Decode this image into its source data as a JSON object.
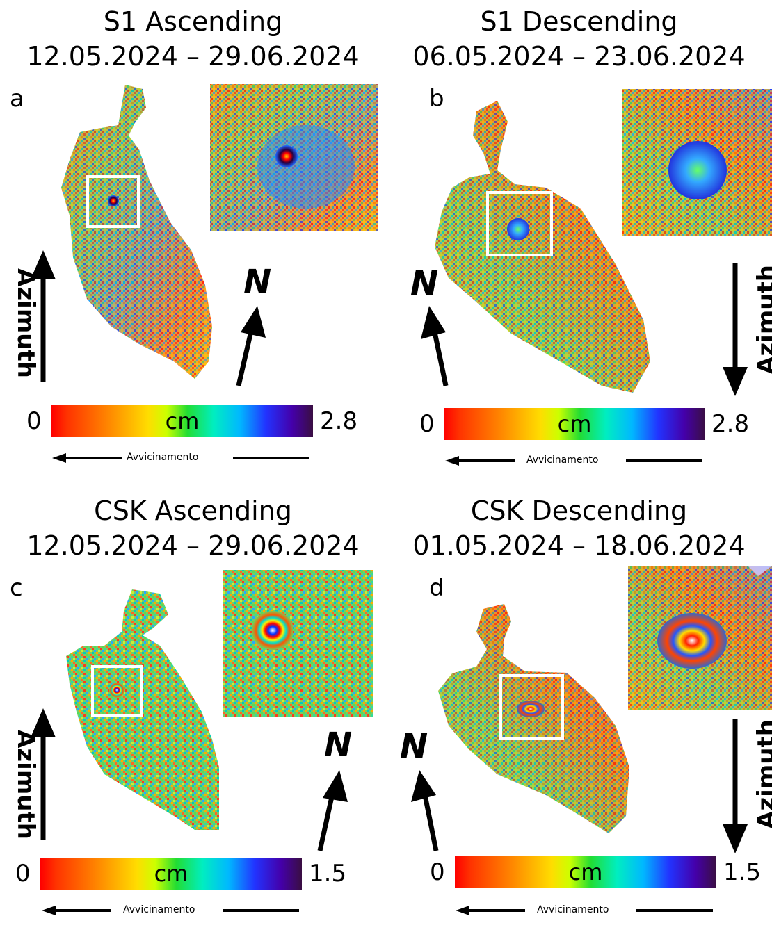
{
  "panels": [
    {
      "letter": "a",
      "title": "S1 Ascending",
      "dates": "12.05.2024 – 29.06.2024",
      "cbar_min": "0",
      "cbar_max": "2.8",
      "unit": "cm",
      "approach": "Avvicinamento",
      "azimuth": "Azimuth",
      "north": "N",
      "azimuth_direction": "up"
    },
    {
      "letter": "b",
      "title": "S1 Descending",
      "dates": "06.05.2024 – 23.06.2024",
      "cbar_min": "0",
      "cbar_max": "2.8",
      "unit": "cm",
      "approach": "Avvicinamento",
      "azimuth": "Azimuth",
      "north": "N",
      "azimuth_direction": "down"
    },
    {
      "letter": "c",
      "title": "CSK Ascending",
      "dates": "12.05.2024 – 29.06.2024",
      "cbar_min": "0",
      "cbar_max": "1.5",
      "unit": "cm",
      "approach": "Avvicinamento",
      "azimuth": "Azimuth",
      "north": "N",
      "azimuth_direction": "up"
    },
    {
      "letter": "d",
      "title": "CSK Descending",
      "dates": "01.05.2024 – 18.06.2024",
      "cbar_min": "0",
      "cbar_max": "1.5",
      "unit": "cm",
      "approach": "Avvicinamento",
      "azimuth": "Azimuth",
      "north": "N",
      "azimuth_direction": "down"
    }
  ],
  "colors": {
    "scale": [
      "#ff0000",
      "#ff8800",
      "#ffdd00",
      "#22dd33",
      "#00eec0",
      "#00b8ff",
      "#2233ff",
      "#3a0e42"
    ],
    "frame": "#ffffff"
  }
}
